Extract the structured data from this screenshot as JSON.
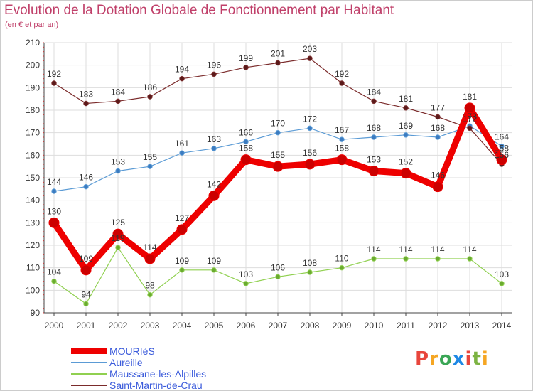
{
  "title": "Evolution de la Dotation Globale de Fonctionnement par Habitant",
  "subtitle": "(en € et par an)",
  "logo": {
    "text": "Proxiti",
    "colors": [
      "#e8453c",
      "#f5a623",
      "#3aa655",
      "#1e88e5",
      "#e8453c",
      "#7cb342",
      "#f5a623"
    ]
  },
  "chart_data": {
    "type": "line",
    "title": "Evolution de la Dotation Globale de Fonctionnement par Habitant",
    "subtitle": "(en € et par an)",
    "xlabel": "",
    "ylabel": "",
    "x": [
      "2000",
      "2001",
      "2002",
      "2003",
      "2004",
      "2005",
      "2006",
      "2007",
      "2008",
      "2009",
      "2010",
      "2011",
      "2012",
      "2013",
      "2014"
    ],
    "ylim": [
      90,
      210
    ],
    "yticks": [
      90,
      100,
      110,
      120,
      130,
      140,
      150,
      160,
      170,
      180,
      190,
      200,
      210
    ],
    "grid": true,
    "legend_position": "bottom-left",
    "series": [
      {
        "name": "MOURIèS",
        "color": "#ee0000",
        "values": [
          130,
          109,
          125,
          114,
          127,
          142,
          158,
          155,
          156,
          158,
          153,
          152,
          146,
          181,
          158
        ]
      },
      {
        "name": "Aureille",
        "color": "#5b9bd5",
        "values": [
          144,
          146,
          153,
          155,
          161,
          163,
          166,
          170,
          172,
          167,
          168,
          169,
          168,
          173,
          164
        ]
      },
      {
        "name": "Maussane-les-Alpilles",
        "color": "#90d050",
        "values": [
          104,
          94,
          119,
          98,
          109,
          109,
          103,
          106,
          108,
          110,
          114,
          114,
          114,
          114,
          103
        ]
      },
      {
        "name": "Saint-Martin-de-Crau",
        "color": "#7b2b2b",
        "values": [
          192,
          183,
          184,
          186,
          194,
          196,
          199,
          201,
          203,
          192,
          184,
          181,
          177,
          172,
          156
        ]
      }
    ]
  }
}
